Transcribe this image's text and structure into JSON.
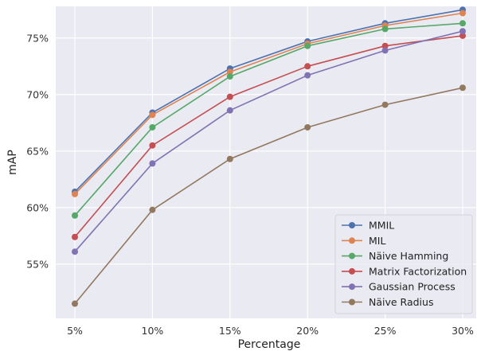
{
  "chart_data": {
    "type": "line",
    "title": "",
    "xlabel": "Percentage",
    "ylabel": "mAP",
    "categories": [
      "5%",
      "10%",
      "15%",
      "20%",
      "25%",
      "30%"
    ],
    "y_ticks": [
      "55%",
      "60%",
      "65%",
      "70%",
      "75%"
    ],
    "ylim": [
      50.2,
      77.8
    ],
    "grid": true,
    "legend_position": "bottom-right",
    "series": [
      {
        "name": "MMIL",
        "color": "#4c72b0",
        "values": [
          61.4,
          68.4,
          72.3,
          74.7,
          76.3,
          77.5
        ]
      },
      {
        "name": "MIL",
        "color": "#dd8452",
        "values": [
          61.2,
          68.2,
          72.0,
          74.5,
          76.1,
          77.2
        ]
      },
      {
        "name": "Näive Hamming",
        "color": "#55a868",
        "values": [
          59.3,
          67.1,
          71.6,
          74.3,
          75.8,
          76.3
        ]
      },
      {
        "name": "Matrix Factorization",
        "color": "#c44e52",
        "values": [
          57.4,
          65.5,
          69.8,
          72.5,
          74.3,
          75.2
        ]
      },
      {
        "name": "Gaussian Process",
        "color": "#8172b3",
        "values": [
          56.1,
          63.9,
          68.6,
          71.7,
          73.9,
          75.6
        ]
      },
      {
        "name": "Näive Radius",
        "color": "#937860",
        "values": [
          51.5,
          59.8,
          64.3,
          67.1,
          69.1,
          70.6
        ]
      }
    ]
  }
}
